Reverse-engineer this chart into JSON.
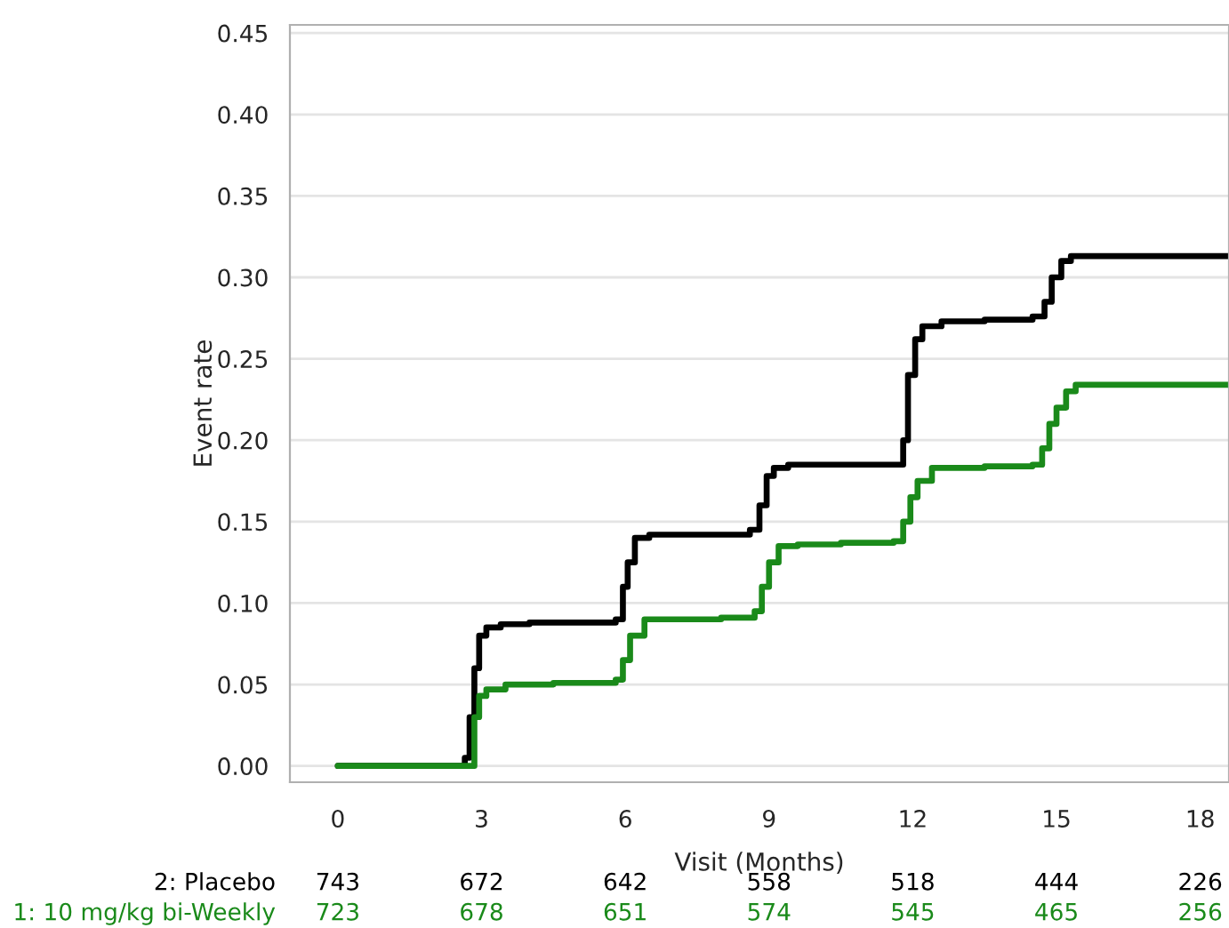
{
  "chart_data": {
    "type": "step",
    "xlabel": "Visit (Months)",
    "ylabel": "Event rate",
    "xlim": [
      -1,
      18.6
    ],
    "ylim": [
      -0.01,
      0.455
    ],
    "xticks": [
      0,
      3,
      6,
      9,
      12,
      15,
      18
    ],
    "yticks": [
      {
        "value": 0,
        "label": "0.00"
      },
      {
        "value": 0.05,
        "label": "0.05"
      },
      {
        "value": 0.1,
        "label": "0.10"
      },
      {
        "value": 0.15,
        "label": "0.15"
      },
      {
        "value": 0.2,
        "label": "0.20"
      },
      {
        "value": 0.25,
        "label": "0.25"
      },
      {
        "value": 0.3,
        "label": "0.30"
      },
      {
        "value": 0.35,
        "label": "0.35"
      },
      {
        "value": 0.4,
        "label": "0.40"
      },
      {
        "value": 0.45,
        "label": "0.45"
      }
    ],
    "grid": "y",
    "legend": false,
    "series": [
      {
        "name": "2: Placebo",
        "color": "#000000",
        "x": [
          0,
          2.5,
          2.65,
          2.75,
          2.85,
          2.95,
          3.1,
          3.4,
          4.0,
          5.0,
          5.8,
          5.95,
          6.05,
          6.2,
          6.5,
          7.5,
          8.6,
          8.8,
          8.95,
          9.1,
          9.4,
          10.5,
          11.6,
          11.8,
          11.9,
          12.05,
          12.2,
          12.6,
          13.5,
          14.5,
          14.75,
          14.9,
          15.1,
          15.3,
          18.6
        ],
        "values": [
          0,
          0,
          0.005,
          0.03,
          0.06,
          0.08,
          0.085,
          0.087,
          0.088,
          0.088,
          0.09,
          0.11,
          0.125,
          0.14,
          0.142,
          0.142,
          0.145,
          0.16,
          0.178,
          0.183,
          0.185,
          0.185,
          0.185,
          0.2,
          0.24,
          0.262,
          0.27,
          0.273,
          0.274,
          0.276,
          0.285,
          0.3,
          0.31,
          0.313,
          0.313
        ]
      },
      {
        "name": "1: 10 mg/kg bi-Weekly",
        "color": "#1a8a1a",
        "x": [
          0,
          2.7,
          2.85,
          2.95,
          3.1,
          3.5,
          4.5,
          5.8,
          5.95,
          6.1,
          6.4,
          6.8,
          8.0,
          8.7,
          8.85,
          9.0,
          9.2,
          9.6,
          10.5,
          11.6,
          11.8,
          11.95,
          12.1,
          12.4,
          13.5,
          14.5,
          14.7,
          14.85,
          15.0,
          15.2,
          15.4,
          18.6
        ],
        "values": [
          0,
          0,
          0.03,
          0.043,
          0.047,
          0.05,
          0.051,
          0.053,
          0.065,
          0.08,
          0.09,
          0.09,
          0.091,
          0.095,
          0.11,
          0.125,
          0.135,
          0.136,
          0.137,
          0.138,
          0.15,
          0.165,
          0.175,
          0.183,
          0.184,
          0.185,
          0.195,
          0.21,
          0.22,
          0.23,
          0.234,
          0.234
        ]
      }
    ],
    "annotations": [
      "743",
      "672",
      "642",
      "558",
      "518",
      "444",
      "226",
      "723",
      "678",
      "651",
      "574",
      "545",
      "465",
      "256"
    ]
  }
}
